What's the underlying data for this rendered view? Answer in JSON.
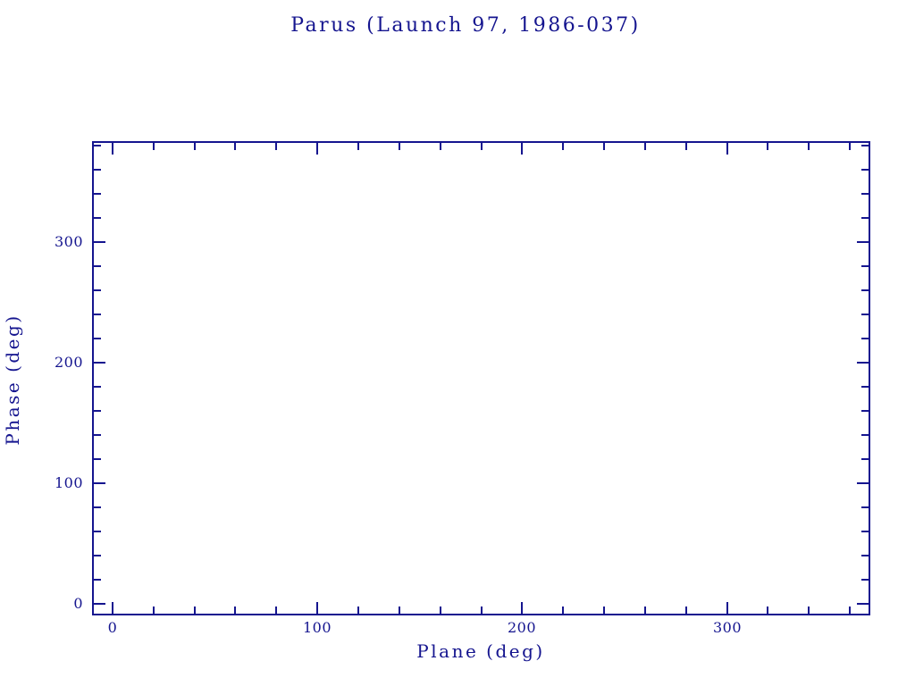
{
  "colors": {
    "ink": "#15158f",
    "background": "#ffffff"
  },
  "chart_data": {
    "type": "scatter",
    "title": "Parus (Launch 97, 1986-037)",
    "xlabel": "Plane (deg)",
    "ylabel": "Phase (deg)",
    "xlim": [
      -10,
      370
    ],
    "ylim": [
      -10,
      384
    ],
    "x_major_ticks": [
      0,
      100,
      200,
      300
    ],
    "x_tick_labels": [
      "0",
      "100",
      "200",
      "300"
    ],
    "x_minor_step": 20,
    "y_major_ticks": [
      0,
      100,
      200,
      300
    ],
    "y_tick_labels": [
      "0",
      "100",
      "200",
      "300"
    ],
    "y_minor_step": 20,
    "grid": false,
    "legend": null,
    "points": [],
    "series": []
  }
}
